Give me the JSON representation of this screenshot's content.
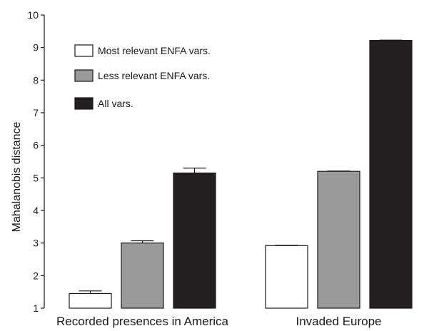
{
  "chart_data": {
    "type": "bar",
    "title": "",
    "xlabel": "",
    "ylabel": "Mahalanobis distance",
    "ylim": [
      1,
      10
    ],
    "yticks": [
      1,
      2,
      3,
      4,
      5,
      6,
      7,
      8,
      9,
      10
    ],
    "grid": false,
    "legend_position": "top-left",
    "categories": [
      "Recorded presences in America",
      "Invaded Europe"
    ],
    "series": [
      {
        "name": "Most relevant ENFA vars.",
        "color": "#ffffff",
        "values": [
          1.45,
          2.92
        ],
        "errors": [
          0.08,
          0.01
        ]
      },
      {
        "name": "Less relevant ENFA vars.",
        "color": "#9a9a9a",
        "values": [
          3.0,
          5.2
        ],
        "errors": [
          0.07,
          0.01
        ]
      },
      {
        "name": "All vars.",
        "color": "#231f20",
        "values": [
          5.15,
          9.22
        ],
        "errors": [
          0.15,
          0.01
        ]
      }
    ]
  }
}
